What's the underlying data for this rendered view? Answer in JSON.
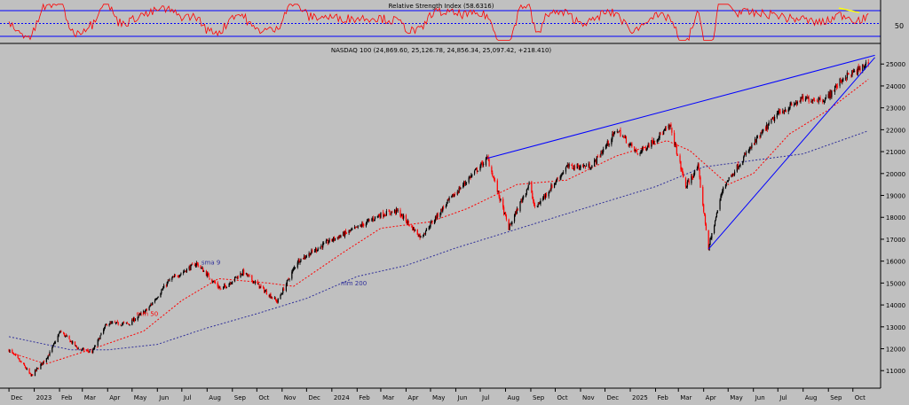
{
  "rsi_panel": {
    "title": "Relative Strength Index (58.6316)",
    "level_label": "50",
    "level": 50,
    "overbought": 70,
    "oversold": 30,
    "line_color": "#ff0000",
    "divergence_color": "#ffff00"
  },
  "chart_data": {
    "type": "candlestick",
    "title": "NASDAQ 100 (24,869.60, 25,126.78, 24,856.34, 25,097.42, +218.410)",
    "ylim": [
      10200,
      25900
    ],
    "y_ticks": [
      "11000",
      "12000",
      "13000",
      "14000",
      "15000",
      "16000",
      "17000",
      "18000",
      "19000",
      "20000",
      "21000",
      "22000",
      "23000",
      "24000",
      "25000"
    ],
    "x_ticks": [
      "Dec",
      "2023",
      "Feb",
      "Mar",
      "Apr",
      "May",
      "Jun",
      "Jul",
      "Aug",
      "Sep",
      "Oct",
      "Nov",
      "Dec",
      "2024",
      "Feb",
      "Mar",
      "Apr",
      "May",
      "Jun",
      "Jul",
      "Aug",
      "Sep",
      "Oct",
      "Nov",
      "Dec",
      "2025",
      "Feb",
      "Mar",
      "Apr",
      "May",
      "Jun",
      "Jul",
      "Aug",
      "Sep",
      "Oct"
    ],
    "price_path": [
      {
        "date": "2022-12-01",
        "close": 11950
      },
      {
        "date": "2022-12-20",
        "close": 11200
      },
      {
        "date": "2022-12-28",
        "close": 10750
      },
      {
        "date": "2023-01-10",
        "close": 11300
      },
      {
        "date": "2023-01-20",
        "close": 11800
      },
      {
        "date": "2023-02-02",
        "close": 12800
      },
      {
        "date": "2023-02-24",
        "close": 12000
      },
      {
        "date": "2023-03-13",
        "close": 11850
      },
      {
        "date": "2023-03-31",
        "close": 13150
      },
      {
        "date": "2023-04-27",
        "close": 13150
      },
      {
        "date": "2023-05-20",
        "close": 13800
      },
      {
        "date": "2023-06-15",
        "close": 15100
      },
      {
        "date": "2023-07-19",
        "close": 15900
      },
      {
        "date": "2023-08-18",
        "close": 14700
      },
      {
        "date": "2023-09-14",
        "close": 15500
      },
      {
        "date": "2023-10-26",
        "close": 14150
      },
      {
        "date": "2023-11-20",
        "close": 16000
      },
      {
        "date": "2023-12-28",
        "close": 16900
      },
      {
        "date": "2024-01-31",
        "close": 17500
      },
      {
        "date": "2024-02-28",
        "close": 18100
      },
      {
        "date": "2024-03-21",
        "close": 18300
      },
      {
        "date": "2024-04-19",
        "close": 17100
      },
      {
        "date": "2024-05-22",
        "close": 18700
      },
      {
        "date": "2024-06-20",
        "close": 19900
      },
      {
        "date": "2024-07-10",
        "close": 20700
      },
      {
        "date": "2024-08-05",
        "close": 17500
      },
      {
        "date": "2024-08-30",
        "close": 19550
      },
      {
        "date": "2024-09-06",
        "close": 18400
      },
      {
        "date": "2024-10-15",
        "close": 20300
      },
      {
        "date": "2024-11-15",
        "close": 20350
      },
      {
        "date": "2024-12-16",
        "close": 22000
      },
      {
        "date": "2025-01-10",
        "close": 20900
      },
      {
        "date": "2025-02-19",
        "close": 22150
      },
      {
        "date": "2025-03-10",
        "close": 19400
      },
      {
        "date": "2025-03-25",
        "close": 20300
      },
      {
        "date": "2025-04-07",
        "close": 16600
      },
      {
        "date": "2025-04-25",
        "close": 19400
      },
      {
        "date": "2025-05-31",
        "close": 21300
      },
      {
        "date": "2025-06-30",
        "close": 22700
      },
      {
        "date": "2025-07-31",
        "close": 23400
      },
      {
        "date": "2025-08-29",
        "close": 23400
      },
      {
        "date": "2025-09-20",
        "close": 24400
      },
      {
        "date": "2025-10-10",
        "close": 24750
      },
      {
        "date": "2025-10-20",
        "close": 25100
      }
    ],
    "series": [
      {
        "name": "mm 50",
        "color": "#ff0000",
        "style": "dashed",
        "values": [
          {
            "date": "2022-12-01",
            "value": 11850
          },
          {
            "date": "2023-01-15",
            "value": 11300
          },
          {
            "date": "2023-03-10",
            "value": 11950
          },
          {
            "date": "2023-05-15",
            "value": 12800
          },
          {
            "date": "2023-07-01",
            "value": 14200
          },
          {
            "date": "2023-08-15",
            "value": 15200
          },
          {
            "date": "2023-10-15",
            "value": 15000
          },
          {
            "date": "2023-11-15",
            "value": 14850
          },
          {
            "date": "2024-01-15",
            "value": 16400
          },
          {
            "date": "2024-03-01",
            "value": 17500
          },
          {
            "date": "2024-05-01",
            "value": 17800
          },
          {
            "date": "2024-06-15",
            "value": 18400
          },
          {
            "date": "2024-08-15",
            "value": 19500
          },
          {
            "date": "2024-10-15",
            "value": 19700
          },
          {
            "date": "2024-12-15",
            "value": 20800
          },
          {
            "date": "2025-02-15",
            "value": 21500
          },
          {
            "date": "2025-03-15",
            "value": 21050
          },
          {
            "date": "2025-05-01",
            "value": 19500
          },
          {
            "date": "2025-06-01",
            "value": 20000
          },
          {
            "date": "2025-07-15",
            "value": 21800
          },
          {
            "date": "2025-09-01",
            "value": 22900
          },
          {
            "date": "2025-10-20",
            "value": 24300
          }
        ]
      },
      {
        "name": "mm 200",
        "color": "#30309a",
        "style": "dashed",
        "values": [
          {
            "date": "2022-12-01",
            "value": 12550
          },
          {
            "date": "2023-01-15",
            "value": 12200
          },
          {
            "date": "2023-02-15",
            "value": 11950
          },
          {
            "date": "2023-04-01",
            "value": 11950
          },
          {
            "date": "2023-06-01",
            "value": 12200
          },
          {
            "date": "2023-08-01",
            "value": 12950
          },
          {
            "date": "2023-10-01",
            "value": 13600
          },
          {
            "date": "2023-12-01",
            "value": 14300
          },
          {
            "date": "2024-02-01",
            "value": 15300
          },
          {
            "date": "2024-04-01",
            "value": 15800
          },
          {
            "date": "2024-06-01",
            "value": 16600
          },
          {
            "date": "2024-08-01",
            "value": 17300
          },
          {
            "date": "2024-10-01",
            "value": 18000
          },
          {
            "date": "2024-12-01",
            "value": 18700
          },
          {
            "date": "2025-02-01",
            "value": 19400
          },
          {
            "date": "2025-04-01",
            "value": 20300
          },
          {
            "date": "2025-06-01",
            "value": 20600
          },
          {
            "date": "2025-08-01",
            "value": 20900
          },
          {
            "date": "2025-10-20",
            "value": 21950
          }
        ]
      }
    ],
    "annotations": [
      {
        "text": "mm 50",
        "date": "2023-05-06",
        "value": 13500,
        "color": "#ff0000"
      },
      {
        "text": "mm 200",
        "date": "2024-01-12",
        "value": 14900,
        "color": "#30309a"
      },
      {
        "text": "sma 9",
        "date": "2023-07-25",
        "value": 15850,
        "color": "#30309a"
      }
    ],
    "trendlines": [
      {
        "color": "#0000ff",
        "points": [
          {
            "date": "2024-07-10",
            "value": 20700
          },
          {
            "date": "2025-10-28",
            "value": 25400
          }
        ]
      },
      {
        "color": "#0000ff",
        "points": [
          {
            "date": "2025-04-07",
            "value": 16550
          },
          {
            "date": "2025-10-28",
            "value": 25300
          }
        ]
      }
    ]
  }
}
